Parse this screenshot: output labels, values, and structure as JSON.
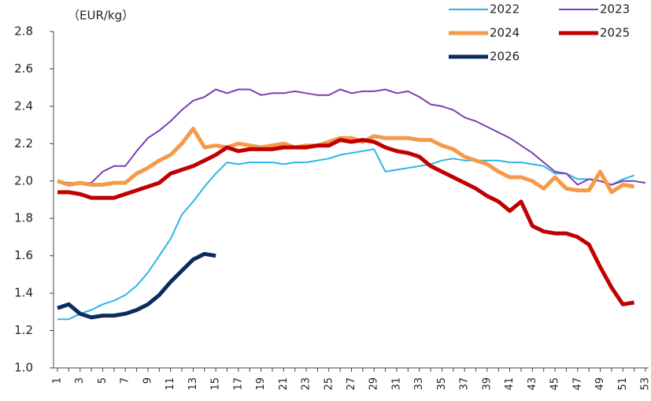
{
  "chart_data": {
    "type": "line",
    "y_unit_label": "（EUR/kg）",
    "x": [
      1,
      2,
      3,
      4,
      5,
      6,
      7,
      8,
      9,
      10,
      11,
      12,
      13,
      14,
      15,
      16,
      17,
      18,
      19,
      20,
      21,
      22,
      23,
      24,
      25,
      26,
      27,
      28,
      29,
      30,
      31,
      32,
      33,
      34,
      35,
      36,
      37,
      38,
      39,
      40,
      41,
      42,
      43,
      44,
      45,
      46,
      47,
      48,
      49,
      50,
      51,
      52,
      53
    ],
    "xlim": [
      1,
      53
    ],
    "xticks": [
      1,
      3,
      5,
      7,
      9,
      11,
      13,
      15,
      17,
      19,
      21,
      23,
      25,
      27,
      29,
      31,
      33,
      35,
      37,
      39,
      41,
      43,
      45,
      47,
      49,
      51,
      53
    ],
    "ylim": [
      1.0,
      2.8
    ],
    "yticks": [
      {
        "value": 1,
        "label": "1.0"
      },
      1.2,
      1.4,
      1.6,
      1.8,
      {
        "value": 2,
        "label": "2.0"
      },
      2.2,
      2.4,
      2.6,
      2.8
    ],
    "series": [
      {
        "name": "2022",
        "color": "#29b6e8",
        "values": [
          1.26,
          1.26,
          1.29,
          1.31,
          1.34,
          1.36,
          1.39,
          1.44,
          1.51,
          1.6,
          1.69,
          1.82,
          1.89,
          1.97,
          2.04,
          2.1,
          2.09,
          2.1,
          2.1,
          2.1,
          2.09,
          2.1,
          2.1,
          2.11,
          2.12,
          2.14,
          2.15,
          2.16,
          2.17,
          2.05,
          2.06,
          2.07,
          2.08,
          2.09,
          2.11,
          2.12,
          2.11,
          2.11,
          2.11,
          2.11,
          2.1,
          2.1,
          2.09,
          2.08,
          2.04,
          2.04,
          2.01,
          2.01,
          2.0,
          1.98,
          2.01,
          2.03,
          null
        ]
      },
      {
        "name": "2023",
        "color": "#7b3fb0",
        "values": [
          2.0,
          1.99,
          1.99,
          1.99,
          2.05,
          2.08,
          2.08,
          2.16,
          2.23,
          2.27,
          2.32,
          2.38,
          2.43,
          2.45,
          2.49,
          2.47,
          2.49,
          2.49,
          2.46,
          2.47,
          2.47,
          2.48,
          2.47,
          2.46,
          2.46,
          2.49,
          2.47,
          2.48,
          2.48,
          2.49,
          2.47,
          2.48,
          2.45,
          2.41,
          2.4,
          2.38,
          2.34,
          2.32,
          2.29,
          2.26,
          2.23,
          2.19,
          2.15,
          2.1,
          2.05,
          2.04,
          1.98,
          2.01,
          2.0,
          1.98,
          2.0,
          2.0,
          1.99
        ]
      },
      {
        "name": "2024",
        "color": "#f59a4a",
        "values": [
          2.0,
          1.98,
          1.99,
          1.98,
          1.98,
          1.99,
          1.99,
          2.04,
          2.07,
          2.11,
          2.14,
          2.2,
          2.28,
          2.18,
          2.19,
          2.18,
          2.2,
          2.19,
          2.18,
          2.19,
          2.2,
          2.18,
          2.19,
          2.19,
          2.21,
          2.23,
          2.23,
          2.21,
          2.24,
          2.23,
          2.23,
          2.23,
          2.22,
          2.22,
          2.19,
          2.17,
          2.13,
          2.11,
          2.09,
          2.05,
          2.02,
          2.02,
          2.0,
          1.96,
          2.02,
          1.96,
          1.95,
          1.95,
          2.05,
          1.94,
          1.98,
          1.97,
          null
        ]
      },
      {
        "name": "2025",
        "color": "#c00000",
        "values": [
          1.94,
          1.94,
          1.93,
          1.91,
          1.91,
          1.91,
          1.93,
          1.95,
          1.97,
          1.99,
          2.04,
          2.06,
          2.08,
          2.11,
          2.14,
          2.18,
          2.16,
          2.17,
          2.17,
          2.17,
          2.18,
          2.18,
          2.18,
          2.19,
          2.19,
          2.22,
          2.21,
          2.22,
          2.21,
          2.18,
          2.16,
          2.15,
          2.13,
          2.08,
          2.05,
          2.02,
          1.99,
          1.96,
          1.92,
          1.89,
          1.84,
          1.89,
          1.76,
          1.73,
          1.72,
          1.72,
          1.7,
          1.66,
          1.54,
          1.43,
          1.34,
          1.35,
          null
        ]
      },
      {
        "name": "2026",
        "color": "#0d2b5e",
        "values": [
          1.32,
          1.34,
          1.29,
          1.27,
          1.28,
          1.28,
          1.29,
          1.31,
          1.34,
          1.39,
          1.46,
          1.52,
          1.58,
          1.61,
          1.6,
          null,
          null,
          null,
          null,
          null,
          null,
          null,
          null,
          null,
          null,
          null,
          null,
          null,
          null,
          null,
          null,
          null,
          null,
          null,
          null,
          null,
          null,
          null,
          null,
          null,
          null,
          null,
          null,
          null,
          null,
          null,
          null,
          null,
          null,
          null,
          null,
          null,
          null
        ]
      }
    ]
  }
}
